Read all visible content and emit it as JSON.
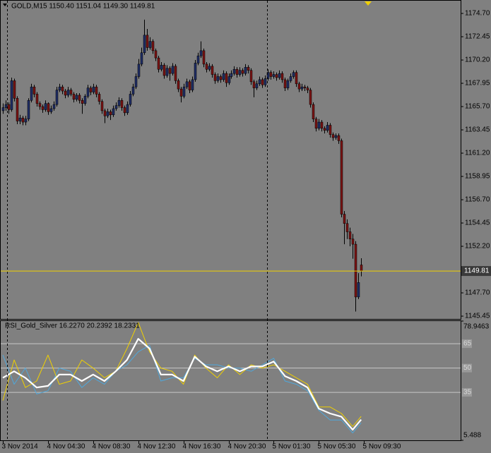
{
  "chart_data": [
    {
      "type": "candlestick",
      "title": "GOLD,M15 1150.40 1151.04 1149.30 1149.81",
      "xlim": [
        -0.75,
        162.25
      ],
      "ylim": [
        1145.18,
        1175.93
      ],
      "yticks": [
        {
          "value": 1174.7,
          "label": "1174.70"
        },
        1172.45,
        {
          "value": 1170.2,
          "label": "1170.20"
        },
        1167.95,
        {
          "value": 1165.7,
          "label": "1165.70"
        },
        1163.45,
        {
          "value": 1161.2,
          "label": "1161.20"
        },
        1158.95,
        {
          "value": 1156.7,
          "label": "1156.70"
        },
        1154.45,
        {
          "value": 1152.2,
          "label": "1152.20"
        },
        {
          "value": 1147.7,
          "label": "1147.70"
        },
        1145.45
      ],
      "last_price": 1149.81,
      "last_price_color": "#f0d000",
      "bull_color": "#1f2d66",
      "bear_color": "#7a1212",
      "wick_color": "#000000",
      "ohlc": [
        [
          1165.3,
          1166.0,
          1165.0,
          1165.6
        ],
        [
          1165.6,
          1166.3,
          1165.3,
          1165.9
        ],
        [
          1165.9,
          1166.1,
          1165.0,
          1165.4
        ],
        [
          1165.4,
          1168.5,
          1165.2,
          1168.2
        ],
        [
          1168.2,
          1168.4,
          1166.2,
          1166.5
        ],
        [
          1166.5,
          1166.7,
          1164.0,
          1164.3
        ],
        [
          1164.3,
          1164.9,
          1164.0,
          1164.6
        ],
        [
          1164.6,
          1164.8,
          1163.9,
          1164.2
        ],
        [
          1164.2,
          1164.8,
          1163.9,
          1164.5
        ],
        [
          1164.5,
          1166.5,
          1164.3,
          1166.3
        ],
        [
          1166.3,
          1167.9,
          1166.1,
          1167.6
        ],
        [
          1167.6,
          1167.8,
          1166.6,
          1166.9
        ],
        [
          1166.9,
          1167.1,
          1165.7,
          1166.0
        ],
        [
          1166.0,
          1166.2,
          1165.4,
          1165.7
        ],
        [
          1165.7,
          1165.9,
          1165.1,
          1165.4
        ],
        [
          1165.4,
          1166.3,
          1165.2,
          1166.0
        ],
        [
          1166.0,
          1166.1,
          1164.9,
          1165.2
        ],
        [
          1165.2,
          1165.8,
          1165.0,
          1165.5
        ],
        [
          1165.5,
          1166.2,
          1165.3,
          1165.9
        ],
        [
          1165.9,
          1167.6,
          1165.7,
          1167.3
        ],
        [
          1167.3,
          1167.9,
          1167.1,
          1167.6
        ],
        [
          1167.6,
          1167.8,
          1166.9,
          1167.2
        ],
        [
          1167.2,
          1167.4,
          1166.5,
          1166.8
        ],
        [
          1166.8,
          1167.6,
          1166.6,
          1167.3
        ],
        [
          1167.3,
          1167.5,
          1166.7,
          1166.9
        ],
        [
          1166.9,
          1167.1,
          1166.1,
          1166.4
        ],
        [
          1166.4,
          1167.0,
          1166.2,
          1166.8
        ],
        [
          1166.8,
          1167.0,
          1166.0,
          1166.3
        ],
        [
          1166.3,
          1166.5,
          1165.0,
          1166.0
        ],
        [
          1166.0,
          1166.9,
          1165.8,
          1166.7
        ],
        [
          1166.7,
          1167.8,
          1166.5,
          1167.5
        ],
        [
          1167.5,
          1167.7,
          1166.8,
          1167.1
        ],
        [
          1167.1,
          1167.9,
          1166.9,
          1167.6
        ],
        [
          1167.6,
          1167.8,
          1166.6,
          1166.9
        ],
        [
          1166.9,
          1167.1,
          1165.9,
          1166.2
        ],
        [
          1166.2,
          1166.4,
          1165.0,
          1165.3
        ],
        [
          1165.3,
          1165.5,
          1164.1,
          1164.8
        ],
        [
          1164.8,
          1165.5,
          1164.6,
          1165.2
        ],
        [
          1165.2,
          1165.4,
          1164.4,
          1164.9
        ],
        [
          1164.9,
          1165.8,
          1164.7,
          1165.5
        ],
        [
          1165.5,
          1166.1,
          1165.3,
          1165.8
        ],
        [
          1165.8,
          1166.6,
          1165.6,
          1166.3
        ],
        [
          1166.3,
          1166.5,
          1165.3,
          1165.6
        ],
        [
          1165.6,
          1165.8,
          1164.8,
          1165.1
        ],
        [
          1165.1,
          1166.2,
          1164.9,
          1165.9
        ],
        [
          1165.9,
          1167.2,
          1165.7,
          1166.9
        ],
        [
          1166.9,
          1167.9,
          1166.7,
          1167.6
        ],
        [
          1167.6,
          1168.9,
          1167.4,
          1168.6
        ],
        [
          1168.6,
          1170.3,
          1168.4,
          1169.8
        ],
        [
          1169.8,
          1171.4,
          1169.6,
          1170.9
        ],
        [
          1170.9,
          1174.1,
          1170.7,
          1172.6
        ],
        [
          1172.6,
          1173.2,
          1171.1,
          1171.4
        ],
        [
          1171.4,
          1172.4,
          1171.2,
          1172.0
        ],
        [
          1172.0,
          1172.2,
          1170.8,
          1171.1
        ],
        [
          1171.1,
          1171.3,
          1170.1,
          1170.4
        ],
        [
          1170.4,
          1170.6,
          1169.0,
          1169.3
        ],
        [
          1169.3,
          1170.0,
          1169.1,
          1169.7
        ],
        [
          1169.7,
          1169.9,
          1168.4,
          1168.7
        ],
        [
          1168.7,
          1169.7,
          1168.5,
          1169.4
        ],
        [
          1169.4,
          1169.6,
          1168.2,
          1168.9
        ],
        [
          1168.9,
          1169.9,
          1168.7,
          1169.6
        ],
        [
          1169.6,
          1169.8,
          1167.9,
          1168.2
        ],
        [
          1168.2,
          1168.4,
          1167.1,
          1167.4
        ],
        [
          1167.4,
          1167.6,
          1166.1,
          1166.7
        ],
        [
          1166.7,
          1167.9,
          1166.5,
          1167.6
        ],
        [
          1167.6,
          1168.4,
          1167.4,
          1168.1
        ],
        [
          1168.1,
          1168.3,
          1167.0,
          1167.3
        ],
        [
          1167.3,
          1168.6,
          1167.1,
          1168.3
        ],
        [
          1168.3,
          1170.2,
          1168.1,
          1169.9
        ],
        [
          1169.9,
          1170.9,
          1169.7,
          1170.6
        ],
        [
          1170.6,
          1172.0,
          1170.4,
          1171.1
        ],
        [
          1171.1,
          1171.3,
          1169.5,
          1169.8
        ],
        [
          1169.8,
          1170.0,
          1169.0,
          1169.3
        ],
        [
          1169.3,
          1169.9,
          1169.1,
          1169.6
        ],
        [
          1169.6,
          1169.8,
          1168.5,
          1168.8
        ],
        [
          1168.8,
          1169.0,
          1167.9,
          1168.2
        ],
        [
          1168.2,
          1168.9,
          1168.0,
          1168.6
        ],
        [
          1168.6,
          1168.8,
          1168.0,
          1168.3
        ],
        [
          1168.3,
          1169.2,
          1168.1,
          1168.9
        ],
        [
          1168.9,
          1169.1,
          1167.6,
          1168.0
        ],
        [
          1168.0,
          1168.9,
          1167.8,
          1168.6
        ],
        [
          1168.6,
          1169.2,
          1168.4,
          1168.9
        ],
        [
          1168.9,
          1169.6,
          1168.7,
          1169.3
        ],
        [
          1169.3,
          1169.5,
          1168.5,
          1168.8
        ],
        [
          1168.8,
          1169.5,
          1168.6,
          1169.2
        ],
        [
          1169.2,
          1169.4,
          1168.6,
          1168.9
        ],
        [
          1168.9,
          1169.8,
          1168.7,
          1169.5
        ],
        [
          1169.5,
          1169.7,
          1168.9,
          1169.2
        ],
        [
          1169.2,
          1169.4,
          1167.8,
          1168.1
        ],
        [
          1168.1,
          1168.3,
          1166.6,
          1167.5
        ],
        [
          1167.5,
          1168.2,
          1167.3,
          1167.9
        ],
        [
          1167.9,
          1168.6,
          1167.7,
          1168.3
        ],
        [
          1168.3,
          1168.5,
          1167.5,
          1167.8
        ],
        [
          1167.8,
          1168.7,
          1167.6,
          1168.4
        ],
        [
          1168.4,
          1169.3,
          1168.2,
          1169.0
        ],
        [
          1169.0,
          1169.2,
          1168.3,
          1168.6
        ],
        [
          1168.6,
          1169.1,
          1168.4,
          1168.8
        ],
        [
          1168.8,
          1169.0,
          1168.2,
          1168.5
        ],
        [
          1168.5,
          1169.2,
          1168.3,
          1168.9
        ],
        [
          1168.9,
          1169.1,
          1168.0,
          1168.3
        ],
        [
          1168.3,
          1168.5,
          1167.2,
          1167.5
        ],
        [
          1167.5,
          1168.4,
          1167.3,
          1168.2
        ],
        [
          1168.2,
          1168.9,
          1168.0,
          1168.6
        ],
        [
          1168.6,
          1169.2,
          1168.4,
          1169.0
        ],
        [
          1169.0,
          1169.2,
          1167.6,
          1167.9
        ],
        [
          1167.9,
          1168.1,
          1167.1,
          1167.4
        ],
        [
          1167.4,
          1167.9,
          1167.2,
          1167.6
        ],
        [
          1167.6,
          1167.8,
          1167.2,
          1167.5
        ],
        [
          1167.5,
          1167.7,
          1167.0,
          1167.3
        ],
        [
          1167.3,
          1167.5,
          1165.6,
          1165.9
        ],
        [
          1165.9,
          1166.1,
          1164.2,
          1164.5
        ],
        [
          1164.5,
          1164.7,
          1163.3,
          1163.6
        ],
        [
          1163.6,
          1164.5,
          1163.4,
          1164.2
        ],
        [
          1164.2,
          1164.4,
          1163.3,
          1163.6
        ],
        [
          1163.6,
          1163.8,
          1163.1,
          1163.4
        ],
        [
          1163.4,
          1164.2,
          1163.2,
          1163.9
        ],
        [
          1163.9,
          1164.1,
          1162.7,
          1163.0
        ],
        [
          1163.0,
          1163.2,
          1162.4,
          1162.7
        ],
        [
          1162.7,
          1163.1,
          1162.5,
          1162.9
        ],
        [
          1162.9,
          1163.1,
          1162.1,
          1162.4
        ],
        [
          1162.4,
          1162.6,
          1155.0,
          1155.3
        ],
        [
          1155.3,
          1155.6,
          1152.4,
          1154.4
        ],
        [
          1154.4,
          1154.8,
          1152.9,
          1153.6
        ],
        [
          1153.6,
          1154.0,
          1152.2,
          1152.9
        ],
        [
          1152.9,
          1153.4,
          1151.0,
          1152.4
        ],
        [
          1152.4,
          1152.7,
          1145.9,
          1147.3
        ],
        [
          1147.3,
          1149.6,
          1147.1,
          1148.7
        ],
        [
          1150.4,
          1151.04,
          1149.3,
          1149.81
        ]
      ]
    },
    {
      "type": "line",
      "title": "RSI_Gold_Silver 16.2270 20.2392 18.2331",
      "xlim": [
        -0.75,
        162.25
      ],
      "ylim": [
        5.488,
        78.9463
      ],
      "yticks": [
        5.488,
        78.9463
      ],
      "levels": [
        65,
        50,
        35
      ],
      "level_color": "#c8c8c8",
      "xticks": [
        {
          "value": 0,
          "label": "3 Nov 2014"
        },
        {
          "value": 16,
          "label": "4 Nov 04:30"
        },
        {
          "value": 32,
          "label": "4 Nov 08:30"
        },
        {
          "value": 48,
          "label": "4 Nov 12:30"
        },
        {
          "value": 64,
          "label": "4 Nov 16:30"
        },
        {
          "value": 80,
          "label": "4 Nov 20:30"
        },
        {
          "value": 96,
          "label": "5 Nov 01:30"
        },
        {
          "value": 112,
          "label": "5 Nov 05:30"
        },
        {
          "value": 128,
          "label": "5 Nov 09:30"
        }
      ],
      "x": [
        0,
        4,
        8,
        12,
        16,
        20,
        24,
        28,
        32,
        36,
        40,
        44,
        48,
        52,
        56,
        60,
        64,
        68,
        72,
        76,
        80,
        84,
        88,
        92,
        96,
        100,
        104,
        108,
        112,
        116,
        120,
        124,
        127
      ],
      "series": [
        {
          "color": "#4fa8dc",
          "values": [
            58,
            40,
            50,
            34,
            36,
            50,
            48,
            38,
            44,
            40,
            48,
            52,
            60,
            64,
            42,
            44,
            44,
            56,
            52,
            52,
            50,
            50,
            48,
            52,
            56,
            42,
            40,
            36,
            24,
            18,
            18,
            10,
            16.227
          ]
        },
        {
          "color": "#f0d000",
          "values": [
            30,
            55,
            38,
            42,
            58,
            40,
            42,
            55,
            50,
            44,
            48,
            62,
            78,
            60,
            50,
            48,
            40,
            58,
            50,
            44,
            52,
            46,
            52,
            50,
            52,
            48,
            44,
            40,
            26,
            26,
            22,
            14,
            20.2392
          ]
        },
        {
          "color": "#ffffff",
          "values": [
            44,
            48,
            44,
            38,
            39,
            46,
            46,
            42,
            46,
            42,
            48,
            55,
            68,
            62,
            46,
            46,
            42,
            57,
            51,
            48,
            51,
            48,
            51,
            51,
            54,
            45,
            42,
            38,
            25,
            22,
            20,
            12,
            18.2331
          ]
        }
      ]
    }
  ]
}
